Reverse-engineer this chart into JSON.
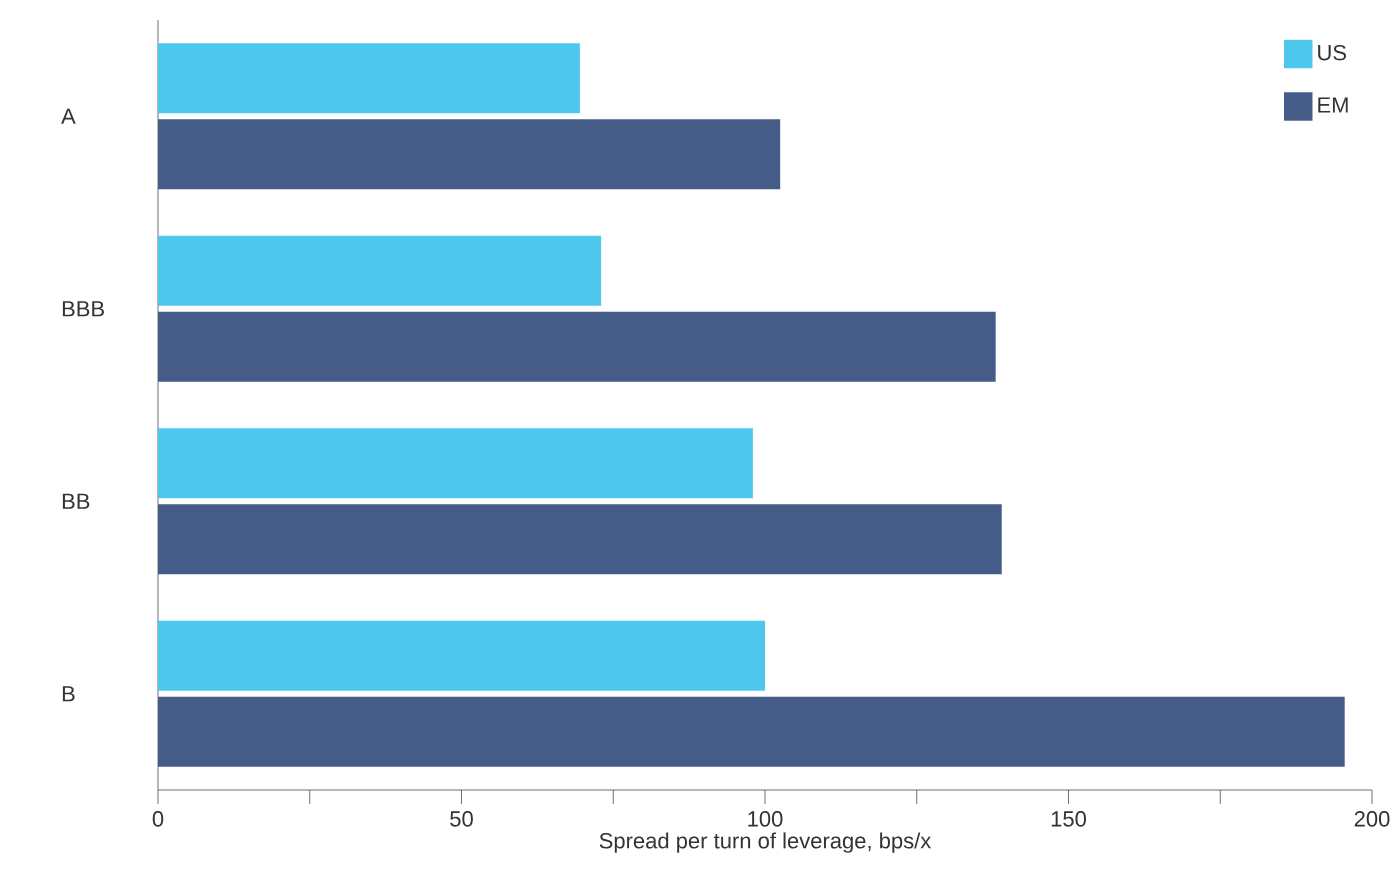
{
  "chart_data": {
    "type": "bar",
    "orientation": "horizontal",
    "xlabel": "Spread per turn of leverage, bps/x",
    "categories": [
      "A",
      "BBB",
      "BB",
      "B"
    ],
    "series": [
      {
        "name": "US",
        "color": "#4dc7ec",
        "values": [
          69.5,
          73,
          98,
          100
        ]
      },
      {
        "name": "EM",
        "color": "#455c88",
        "values": [
          102.5,
          138,
          139,
          195.5
        ]
      }
    ],
    "xlim": [
      0,
      200
    ],
    "xticks": [
      0,
      {
        "value": 25,
        "label": null
      },
      50,
      {
        "value": 75,
        "label": null
      },
      100,
      {
        "value": 125,
        "label": null
      },
      150,
      {
        "value": 175,
        "label": null
      },
      200
    ],
    "legend": "top right",
    "grid": false
  }
}
